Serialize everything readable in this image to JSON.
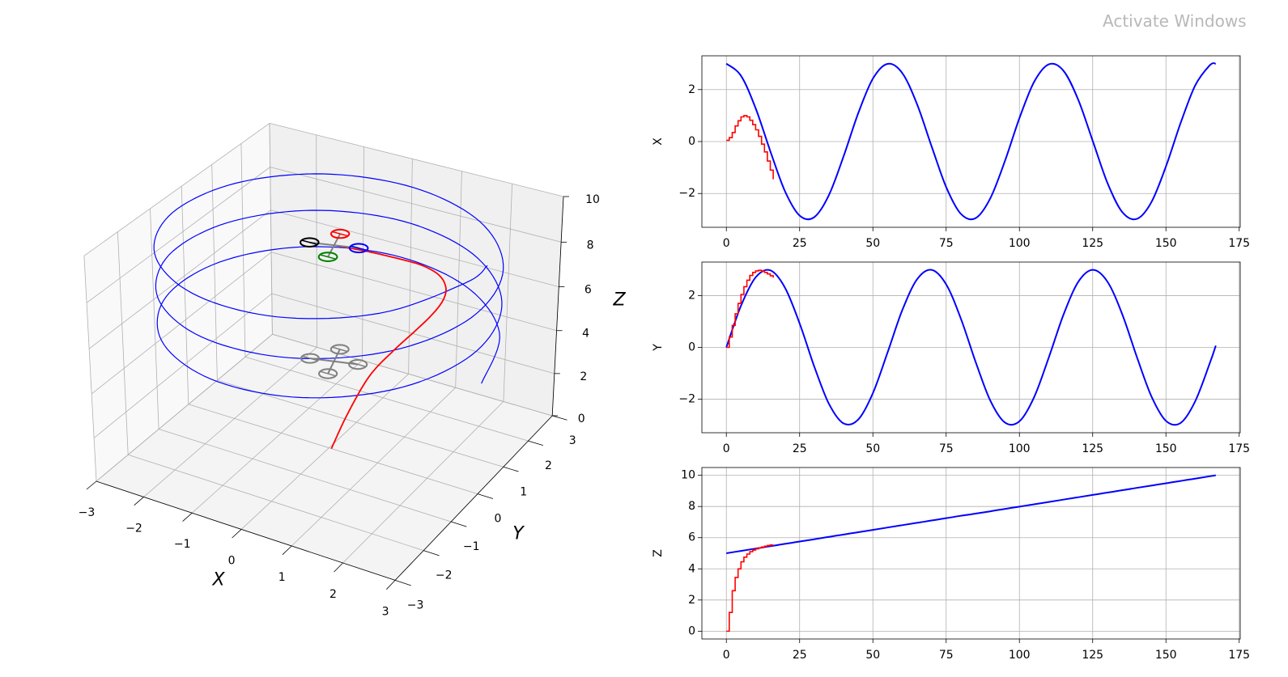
{
  "watermark": "Activate Windows",
  "chart_data": [
    {
      "type": "line3d",
      "xlabel": "X",
      "ylabel": "Y",
      "zlabel": "Z",
      "xlim": [
        -3,
        3
      ],
      "ylim": [
        -3,
        3
      ],
      "zlim": [
        0,
        10
      ],
      "xticks": [
        -3,
        -2,
        -1,
        0,
        1,
        2,
        3
      ],
      "xticklabels": [
        "−3",
        "−2",
        "−1",
        "0",
        "1",
        "2",
        "3"
      ],
      "yticks": [
        -3,
        -2,
        -1,
        0,
        1,
        2,
        3
      ],
      "yticklabels": [
        "−3",
        "−2",
        "−1",
        "0",
        "1",
        "2",
        "3"
      ],
      "zticks": [
        0,
        2,
        4,
        6,
        8,
        10
      ],
      "zticklabels": [
        "0",
        "2",
        "4",
        "6",
        "8",
        "10"
      ],
      "view": {
        "elev": 30,
        "azim": -60
      },
      "grid": true,
      "pane_colors": {
        "x": "#f9f9f9",
        "y": "#f0f0f0",
        "z": "#f4f4f4"
      },
      "series": [
        {
          "color": "#0000ff",
          "x": [
            3.0,
            2.53,
            1.28,
            -0.37,
            -1.91,
            -2.85,
            -2.91,
            -2.06,
            -0.57,
            1.09,
            2.42,
            2.99,
            2.64,
            1.46,
            -0.17,
            -1.75,
            -2.78,
            -2.95,
            -2.2,
            -0.77,
            0.9,
            2.29,
            2.97,
            2.73,
            1.63,
            0.03,
            -1.58,
            -2.7,
            -2.98,
            -2.34,
            -0.96,
            0.71,
            2.16,
            2.94,
            3.0
          ],
          "y": [
            0.0,
            1.61,
            2.71,
            2.98,
            2.31,
            0.93,
            -0.74,
            -2.18,
            -2.94,
            -2.79,
            -1.77,
            -0.2,
            1.43,
            2.62,
            3.0,
            2.44,
            1.12,
            -0.54,
            -2.04,
            -2.9,
            -2.86,
            -1.93,
            -0.4,
            1.25,
            2.52,
            3.0,
            2.55,
            1.31,
            -0.34,
            -1.88,
            -2.84,
            -2.92,
            -2.08,
            -0.6,
            0.07
          ],
          "z": [
            5.0,
            5.15,
            5.3,
            5.45,
            5.6,
            5.75,
            5.9,
            6.05,
            6.2,
            6.35,
            6.5,
            6.65,
            6.8,
            6.95,
            7.1,
            7.25,
            7.4,
            7.54,
            7.69,
            7.84,
            7.99,
            8.14,
            8.29,
            8.44,
            8.59,
            8.74,
            8.89,
            9.04,
            9.19,
            9.34,
            9.49,
            9.64,
            9.79,
            9.94,
            10.0
          ]
        },
        {
          "color": "#ff0000",
          "x": [
            0.05,
            0.15,
            0.35,
            0.6,
            0.8,
            0.95,
            1.0,
            0.95,
            0.82,
            0.65,
            0.45,
            0.2,
            -0.1,
            -0.4,
            -0.75,
            -1.1,
            -1.45
          ],
          "y": [
            0,
            0.4,
            0.85,
            1.3,
            1.7,
            2.05,
            2.35,
            2.6,
            2.78,
            2.9,
            2.96,
            2.98,
            2.95,
            2.9,
            2.84,
            2.77,
            2.7
          ],
          "z": [
            0,
            1.2,
            2.6,
            3.45,
            4.0,
            4.45,
            4.75,
            4.95,
            5.1,
            5.2,
            5.28,
            5.35,
            5.4,
            5.45,
            5.5,
            5.53,
            5.55
          ]
        }
      ],
      "quadrotor": {
        "rotor_colors": [
          "#0000ff",
          "#ff0000",
          "#000000",
          "#008000"
        ],
        "arm_color": "#808080",
        "shadow_color": "#808080"
      }
    },
    {
      "type": "line",
      "ylabel": "X",
      "xlim": [
        -8.35,
        175.35
      ],
      "ylim": [
        -3.3,
        3.3
      ],
      "grid": true,
      "xticks": [
        0,
        25,
        50,
        75,
        100,
        125,
        150,
        175
      ],
      "xticklabels": [
        "0",
        "25",
        "50",
        "75",
        "100",
        "125",
        "150",
        "175"
      ],
      "yticks": [
        -2,
        0,
        2
      ],
      "yticklabels": [
        "−2",
        "0",
        "2"
      ],
      "series": [
        {
          "color": "#0000ff",
          "style": "smooth",
          "x": [
            0,
            5,
            10,
            15,
            20,
            25,
            30,
            35,
            40,
            45,
            50,
            55,
            60,
            65,
            70,
            75,
            80,
            85,
            90,
            95,
            100,
            105,
            110,
            115,
            120,
            125,
            130,
            135,
            140,
            145,
            150,
            155,
            160,
            165,
            167
          ],
          "y": [
            3.0,
            2.53,
            1.28,
            -0.37,
            -1.91,
            -2.85,
            -2.91,
            -2.06,
            -0.57,
            1.09,
            2.42,
            2.99,
            2.64,
            1.46,
            -0.17,
            -1.75,
            -2.78,
            -2.95,
            -2.2,
            -0.77,
            0.9,
            2.29,
            2.97,
            2.73,
            1.63,
            0.03,
            -1.58,
            -2.7,
            -2.98,
            -2.34,
            -0.96,
            0.71,
            2.16,
            2.94,
            3.0
          ]
        },
        {
          "color": "#ff0000",
          "style": "steps",
          "x": [
            0,
            1,
            2,
            3,
            4,
            5,
            6,
            7,
            8,
            9,
            10,
            11,
            12,
            13,
            14,
            15,
            16
          ],
          "y": [
            0.05,
            0.15,
            0.35,
            0.6,
            0.8,
            0.95,
            1.0,
            0.95,
            0.82,
            0.65,
            0.45,
            0.2,
            -0.1,
            -0.4,
            -0.75,
            -1.1,
            -1.45
          ]
        }
      ]
    },
    {
      "type": "line",
      "ylabel": "Y",
      "xlim": [
        -8.35,
        175.35
      ],
      "ylim": [
        -3.3,
        3.3
      ],
      "grid": true,
      "xticks": [
        0,
        25,
        50,
        75,
        100,
        125,
        150,
        175
      ],
      "xticklabels": [
        "0",
        "25",
        "50",
        "75",
        "100",
        "125",
        "150",
        "175"
      ],
      "yticks": [
        -2,
        0,
        2
      ],
      "yticklabels": [
        "−2",
        "0",
        "2"
      ],
      "series": [
        {
          "color": "#0000ff",
          "style": "smooth",
          "x": [
            0,
            5,
            10,
            15,
            20,
            25,
            30,
            35,
            40,
            45,
            50,
            55,
            60,
            65,
            70,
            75,
            80,
            85,
            90,
            95,
            100,
            105,
            110,
            115,
            120,
            125,
            130,
            135,
            140,
            145,
            150,
            155,
            160,
            165,
            167
          ],
          "y": [
            0.0,
            1.61,
            2.71,
            2.98,
            2.31,
            0.93,
            -0.74,
            -2.18,
            -2.94,
            -2.79,
            -1.77,
            -0.2,
            1.43,
            2.62,
            3.0,
            2.44,
            1.12,
            -0.54,
            -2.04,
            -2.9,
            -2.86,
            -1.93,
            -0.4,
            1.25,
            2.52,
            3.0,
            2.55,
            1.31,
            -0.34,
            -1.88,
            -2.84,
            -2.92,
            -2.08,
            -0.6,
            0.07
          ]
        },
        {
          "color": "#ff0000",
          "style": "steps",
          "x": [
            0,
            1,
            2,
            3,
            4,
            5,
            6,
            7,
            8,
            9,
            10,
            11,
            12,
            13,
            14,
            15,
            16
          ],
          "y": [
            0,
            0.4,
            0.85,
            1.3,
            1.7,
            2.05,
            2.35,
            2.6,
            2.78,
            2.9,
            2.96,
            2.98,
            2.95,
            2.9,
            2.84,
            2.77,
            2.7
          ]
        }
      ]
    },
    {
      "type": "line",
      "ylabel": "Z",
      "xlim": [
        -8.35,
        175.35
      ],
      "ylim": [
        -0.5,
        10.5
      ],
      "grid": true,
      "xticks": [
        0,
        25,
        50,
        75,
        100,
        125,
        150,
        175
      ],
      "xticklabels": [
        "0",
        "25",
        "50",
        "75",
        "100",
        "125",
        "150",
        "175"
      ],
      "yticks": [
        0,
        2,
        4,
        6,
        8,
        10
      ],
      "yticklabels": [
        "0",
        "2",
        "4",
        "6",
        "8",
        "10"
      ],
      "series": [
        {
          "color": "#0000ff",
          "style": "smooth",
          "x": [
            0,
            5,
            10,
            15,
            20,
            25,
            30,
            35,
            40,
            45,
            50,
            55,
            60,
            65,
            70,
            75,
            80,
            85,
            90,
            95,
            100,
            105,
            110,
            115,
            120,
            125,
            130,
            135,
            140,
            145,
            150,
            155,
            160,
            165,
            167
          ],
          "y": [
            5.0,
            5.15,
            5.3,
            5.45,
            5.6,
            5.75,
            5.9,
            6.05,
            6.2,
            6.35,
            6.5,
            6.65,
            6.8,
            6.95,
            7.1,
            7.25,
            7.4,
            7.54,
            7.69,
            7.84,
            7.99,
            8.14,
            8.29,
            8.44,
            8.59,
            8.74,
            8.89,
            9.04,
            9.19,
            9.34,
            9.49,
            9.64,
            9.79,
            9.94,
            10.0
          ]
        },
        {
          "color": "#ff0000",
          "style": "steps",
          "x": [
            0,
            1,
            2,
            3,
            4,
            5,
            6,
            7,
            8,
            9,
            10,
            11,
            12,
            13,
            14,
            15,
            16
          ],
          "y": [
            0,
            1.2,
            2.6,
            3.45,
            4.0,
            4.45,
            4.75,
            4.95,
            5.1,
            5.2,
            5.28,
            5.35,
            5.4,
            5.45,
            5.5,
            5.53,
            5.55
          ]
        }
      ]
    }
  ]
}
